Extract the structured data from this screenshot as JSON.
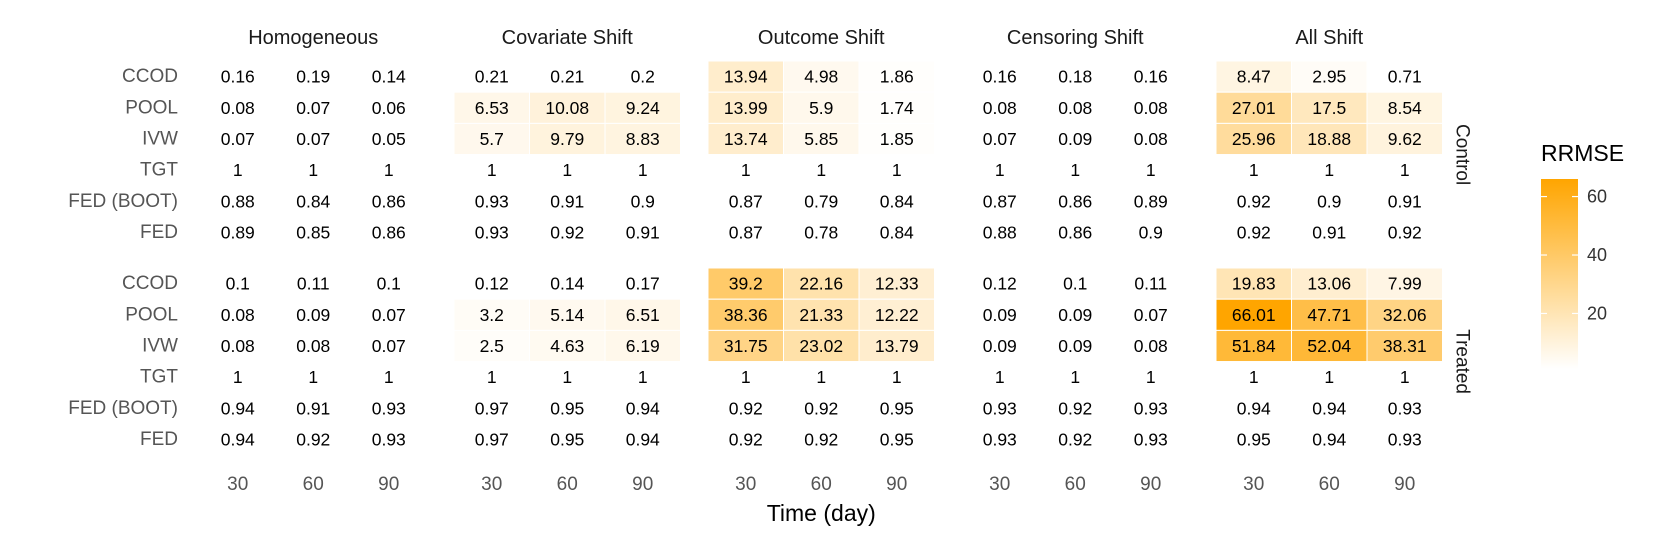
{
  "chart_data": {
    "type": "heatmap",
    "facets": [
      "Homogeneous",
      "Covariate Shift",
      "Outcome Shift",
      "Censoring Shift",
      "All Shift"
    ],
    "groups": [
      "Control",
      "Treated"
    ],
    "methods": [
      "CCOD",
      "POOL",
      "IVW",
      "TGT",
      "FED (BOOT)",
      "FED"
    ],
    "times": [
      "30",
      "60",
      "90"
    ],
    "xlabel": "Time (day)",
    "legend": {
      "title": "RRMSE",
      "ticks": [
        "20",
        "40",
        "60"
      ],
      "range": [
        1,
        66.01
      ],
      "low_color": "#ffffff",
      "high_color": "#ffa500"
    },
    "labels": {
      "Control": [
        [
          [
            "0.16",
            "0.19",
            "0.14"
          ],
          [
            "0.21",
            "0.21",
            "0.2"
          ],
          [
            "13.94",
            "4.98",
            "1.86"
          ],
          [
            "0.16",
            "0.18",
            "0.16"
          ],
          [
            "8.47",
            "2.95",
            "0.71"
          ]
        ],
        [
          [
            "0.08",
            "0.07",
            "0.06"
          ],
          [
            "6.53",
            "10.08",
            "9.24"
          ],
          [
            "13.99",
            "5.9",
            "1.74"
          ],
          [
            "0.08",
            "0.08",
            "0.08"
          ],
          [
            "27.01",
            "17.5",
            "8.54"
          ]
        ],
        [
          [
            "0.07",
            "0.07",
            "0.05"
          ],
          [
            "5.7",
            "9.79",
            "8.83"
          ],
          [
            "13.74",
            "5.85",
            "1.85"
          ],
          [
            "0.07",
            "0.09",
            "0.08"
          ],
          [
            "25.96",
            "18.88",
            "9.62"
          ]
        ],
        [
          [
            "1",
            "1",
            "1"
          ],
          [
            "1",
            "1",
            "1"
          ],
          [
            "1",
            "1",
            "1"
          ],
          [
            "1",
            "1",
            "1"
          ],
          [
            "1",
            "1",
            "1"
          ]
        ],
        [
          [
            "0.88",
            "0.84",
            "0.86"
          ],
          [
            "0.93",
            "0.91",
            "0.9"
          ],
          [
            "0.87",
            "0.79",
            "0.84"
          ],
          [
            "0.87",
            "0.86",
            "0.89"
          ],
          [
            "0.92",
            "0.9",
            "0.91"
          ]
        ],
        [
          [
            "0.89",
            "0.85",
            "0.86"
          ],
          [
            "0.93",
            "0.92",
            "0.91"
          ],
          [
            "0.87",
            "0.78",
            "0.84"
          ],
          [
            "0.88",
            "0.86",
            "0.9"
          ],
          [
            "0.92",
            "0.91",
            "0.92"
          ]
        ]
      ],
      "Treated": [
        [
          [
            "0.1",
            "0.11",
            "0.1"
          ],
          [
            "0.12",
            "0.14",
            "0.17"
          ],
          [
            "39.2",
            "22.16",
            "12.33"
          ],
          [
            "0.12",
            "0.1",
            "0.11"
          ],
          [
            "19.83",
            "13.06",
            "7.99"
          ]
        ],
        [
          [
            "0.08",
            "0.09",
            "0.07"
          ],
          [
            "3.2",
            "5.14",
            "6.51"
          ],
          [
            "38.36",
            "21.33",
            "12.22"
          ],
          [
            "0.09",
            "0.09",
            "0.07"
          ],
          [
            "66.01",
            "47.71",
            "32.06"
          ]
        ],
        [
          [
            "0.08",
            "0.08",
            "0.07"
          ],
          [
            "2.5",
            "4.63",
            "6.19"
          ],
          [
            "31.75",
            "23.02",
            "13.79"
          ],
          [
            "0.09",
            "0.09",
            "0.08"
          ],
          [
            "51.84",
            "52.04",
            "38.31"
          ]
        ],
        [
          [
            "1",
            "1",
            "1"
          ],
          [
            "1",
            "1",
            "1"
          ],
          [
            "1",
            "1",
            "1"
          ],
          [
            "1",
            "1",
            "1"
          ],
          [
            "1",
            "1",
            "1"
          ]
        ],
        [
          [
            "0.94",
            "0.91",
            "0.93"
          ],
          [
            "0.97",
            "0.95",
            "0.94"
          ],
          [
            "0.92",
            "0.92",
            "0.95"
          ],
          [
            "0.93",
            "0.92",
            "0.93"
          ],
          [
            "0.94",
            "0.94",
            "0.93"
          ]
        ],
        [
          [
            "0.94",
            "0.92",
            "0.93"
          ],
          [
            "0.97",
            "0.95",
            "0.94"
          ],
          [
            "0.92",
            "0.92",
            "0.95"
          ],
          [
            "0.93",
            "0.92",
            "0.93"
          ],
          [
            "0.95",
            "0.94",
            "0.93"
          ]
        ]
      ]
    }
  }
}
